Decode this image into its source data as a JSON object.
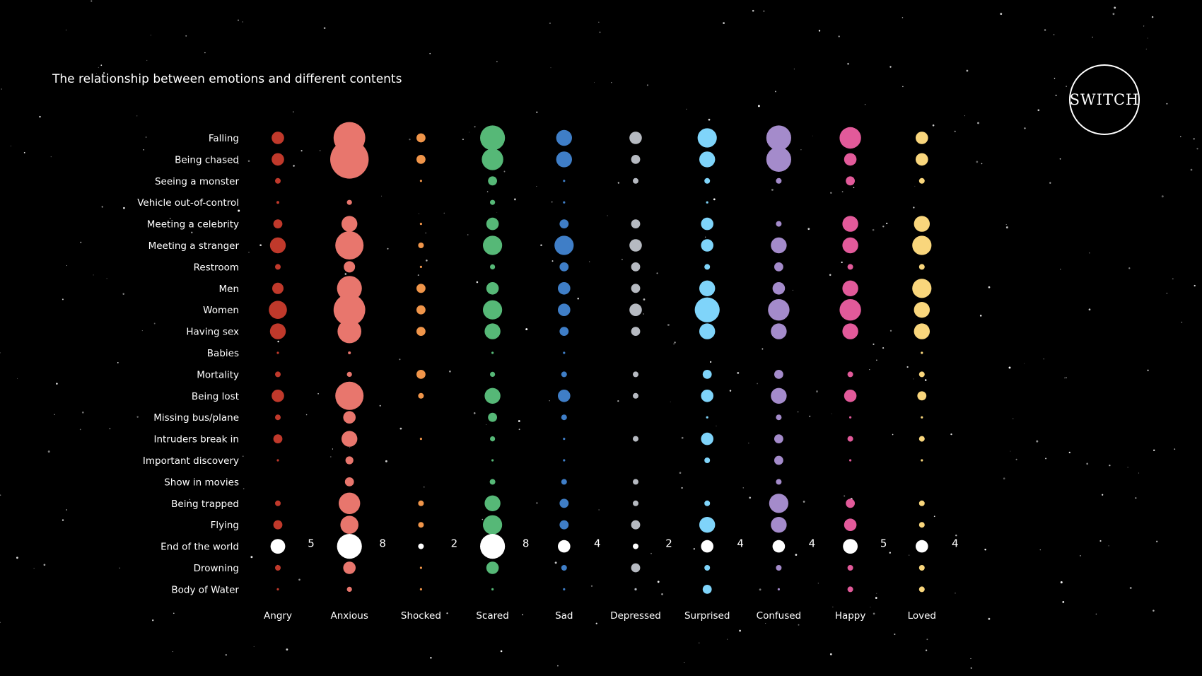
{
  "title": "The relationship between emotions and different contents",
  "logo": {
    "text": "SWITCH"
  },
  "chart_data": {
    "type": "bubble-matrix",
    "title": "The relationship between emotions and different contents",
    "rows": [
      "Falling",
      "Being chased",
      "Seeing a monster",
      "Vehicle out-of-control",
      "Meeting a celebrity",
      "Meeting a stranger",
      "Restroom",
      "Men",
      "Women",
      "Having sex",
      "Babies",
      "Mortality",
      "Being lost",
      "Missing bus/plane",
      "Intruders break in",
      "Important discovery",
      "Show in movies",
      "Being trapped",
      "Flying",
      "End of the world",
      "Drowning",
      "Body of Water"
    ],
    "highlight_row": "End of the world",
    "series": [
      {
        "name": "Angry",
        "color": "#c0392b",
        "total": "5",
        "values": [
          2.2,
          2.2,
          1,
          0.5,
          1.6,
          2.8,
          1,
          2,
          3.2,
          2.8,
          0.4,
          1,
          2.2,
          1,
          1.6,
          0.4,
          0,
          1,
          1.6,
          2.6,
          1,
          0.4
        ]
      },
      {
        "name": "Anxious",
        "color": "#e8766d",
        "total": "8",
        "values": [
          5.6,
          6.8,
          0,
          0.9,
          2.8,
          5,
          2,
          4.4,
          5.6,
          4.2,
          0.5,
          0.9,
          5,
          2.2,
          2.8,
          1.4,
          1.6,
          3.8,
          3.2,
          4.4,
          2.2,
          0.9
        ]
      },
      {
        "name": "Shocked",
        "color": "#f0954a",
        "total": "2",
        "values": [
          1.6,
          1.6,
          0.4,
          0,
          0.4,
          1,
          0.4,
          1.6,
          1.6,
          1.6,
          0,
          1.6,
          1,
          0,
          0.4,
          0,
          0,
          1,
          1,
          1,
          0.4,
          0.4
        ]
      },
      {
        "name": "Scared",
        "color": "#56b877",
        "total": "8",
        "values": [
          4.4,
          3.8,
          1.6,
          0.9,
          2.2,
          3.4,
          0.9,
          2.2,
          3.4,
          2.8,
          0.4,
          0.9,
          2.8,
          1.6,
          0.9,
          0.4,
          1,
          2.8,
          3.4,
          4.4,
          2.2,
          0.4
        ]
      },
      {
        "name": "Sad",
        "color": "#3f7ec7",
        "total": "4",
        "values": [
          2.8,
          2.8,
          0.4,
          0.4,
          1.6,
          3.4,
          1.6,
          2.2,
          2.2,
          1.6,
          0.4,
          1,
          2.2,
          1,
          0.4,
          0.4,
          1,
          1.6,
          1.6,
          2.2,
          1,
          0.4
        ]
      },
      {
        "name": "Depressed",
        "color": "#b6bac1",
        "total": "2",
        "values": [
          2.2,
          1.6,
          1,
          0,
          1.6,
          2.2,
          1.6,
          1.6,
          2.2,
          1.6,
          0,
          1,
          1,
          0,
          1,
          0,
          1,
          1,
          1.6,
          1,
          1.6,
          0.4
        ]
      },
      {
        "name": "Surprised",
        "color": "#7fd4fa",
        "total": "4",
        "values": [
          3.4,
          2.8,
          1,
          0.4,
          2.2,
          2.2,
          1,
          2.8,
          4.4,
          2.8,
          0,
          1.6,
          2.2,
          0.4,
          2.2,
          1,
          0,
          1,
          2.8,
          2.2,
          1,
          1.6
        ]
      },
      {
        "name": "Confused",
        "color": "#a48bcb",
        "total": "4",
        "values": [
          4.4,
          4.4,
          1,
          0,
          1,
          2.8,
          1.6,
          2.2,
          3.8,
          2.8,
          0,
          1.6,
          2.8,
          1,
          1.6,
          1.6,
          1,
          3.4,
          2.8,
          2.2,
          1,
          0.4
        ]
      },
      {
        "name": "Happy",
        "color": "#e25a9a",
        "total": "5",
        "values": [
          3.8,
          2.2,
          1.6,
          0,
          2.8,
          2.8,
          1,
          2.8,
          3.8,
          2.8,
          0,
          1,
          2.2,
          0.4,
          1,
          0.4,
          0,
          1.6,
          2.2,
          2.6,
          1,
          1
        ]
      },
      {
        "name": "Loved",
        "color": "#f9d67c",
        "total": "4",
        "values": [
          2.2,
          2.2,
          1,
          0,
          2.8,
          3.4,
          1,
          3.4,
          2.8,
          2.8,
          0.4,
          1,
          1.6,
          0.4,
          1,
          0.4,
          0,
          1,
          1,
          2.2,
          1,
          1
        ]
      }
    ]
  }
}
